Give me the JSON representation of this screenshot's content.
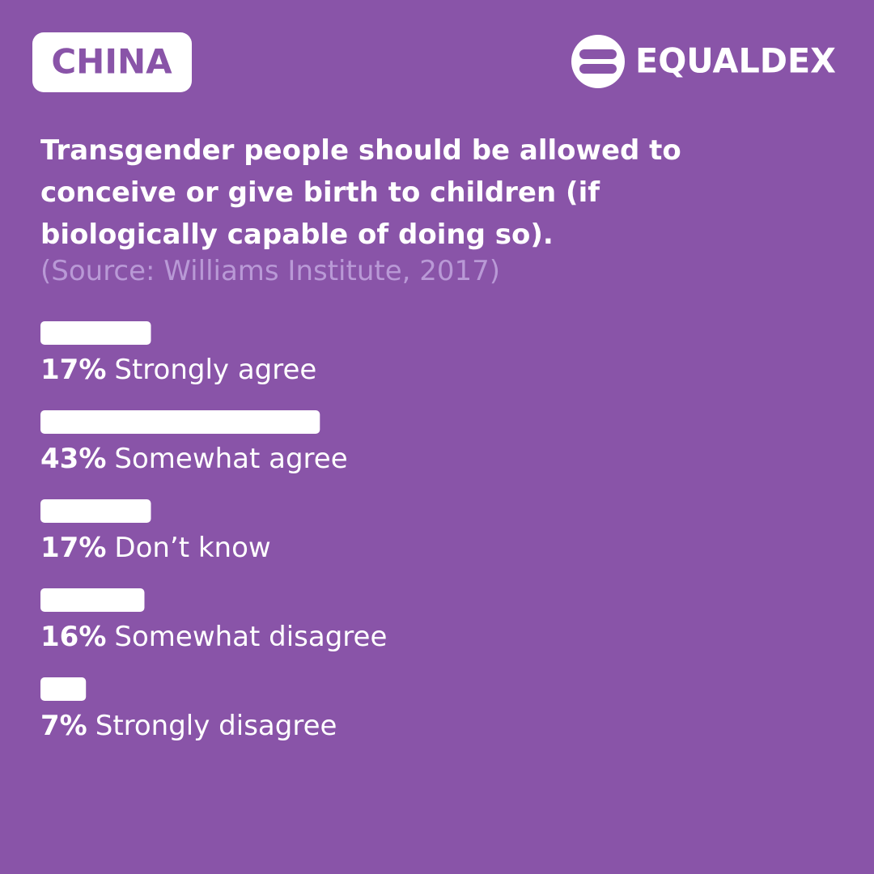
{
  "chart_data": {
    "type": "bar",
    "orientation": "horizontal",
    "country": "CHINA",
    "brand": "EQUALDEX",
    "title": "Transgender people should be allowed to conceive or give birth to children (if biologically capable of doing so).",
    "subtitle": "(Source: Williams Institute, 2017)",
    "categories": [
      "Strongly agree",
      "Somewhat agree",
      "Don’t know",
      "Somewhat disagree",
      "Strongly disagree"
    ],
    "values": [
      17,
      43,
      17,
      16,
      7
    ],
    "value_labels": [
      "17%",
      "43%",
      "17%",
      "16%",
      "7%"
    ],
    "color": "#ffffff",
    "xlim": [
      0,
      100
    ]
  }
}
